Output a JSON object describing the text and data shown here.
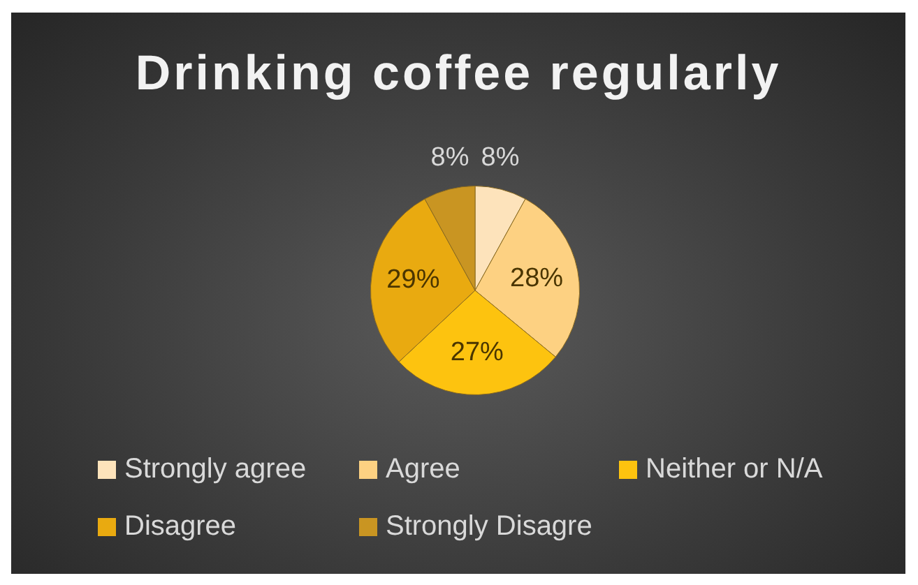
{
  "chart_data": {
    "type": "pie",
    "title": "Drinking coffee regularly",
    "categories": [
      "Strongly agree",
      "Agree",
      "Neither or N/A",
      "Disagree",
      "Strongly Disagre"
    ],
    "values": [
      8,
      28,
      27,
      29,
      8
    ],
    "colors": [
      "#fde3bb",
      "#fdd182",
      "#fdc30f",
      "#e9aa10",
      "#c99522"
    ],
    "value_labels": [
      "8%",
      "28%",
      "27%",
      "29%",
      "8%"
    ],
    "legend": "bottom"
  }
}
